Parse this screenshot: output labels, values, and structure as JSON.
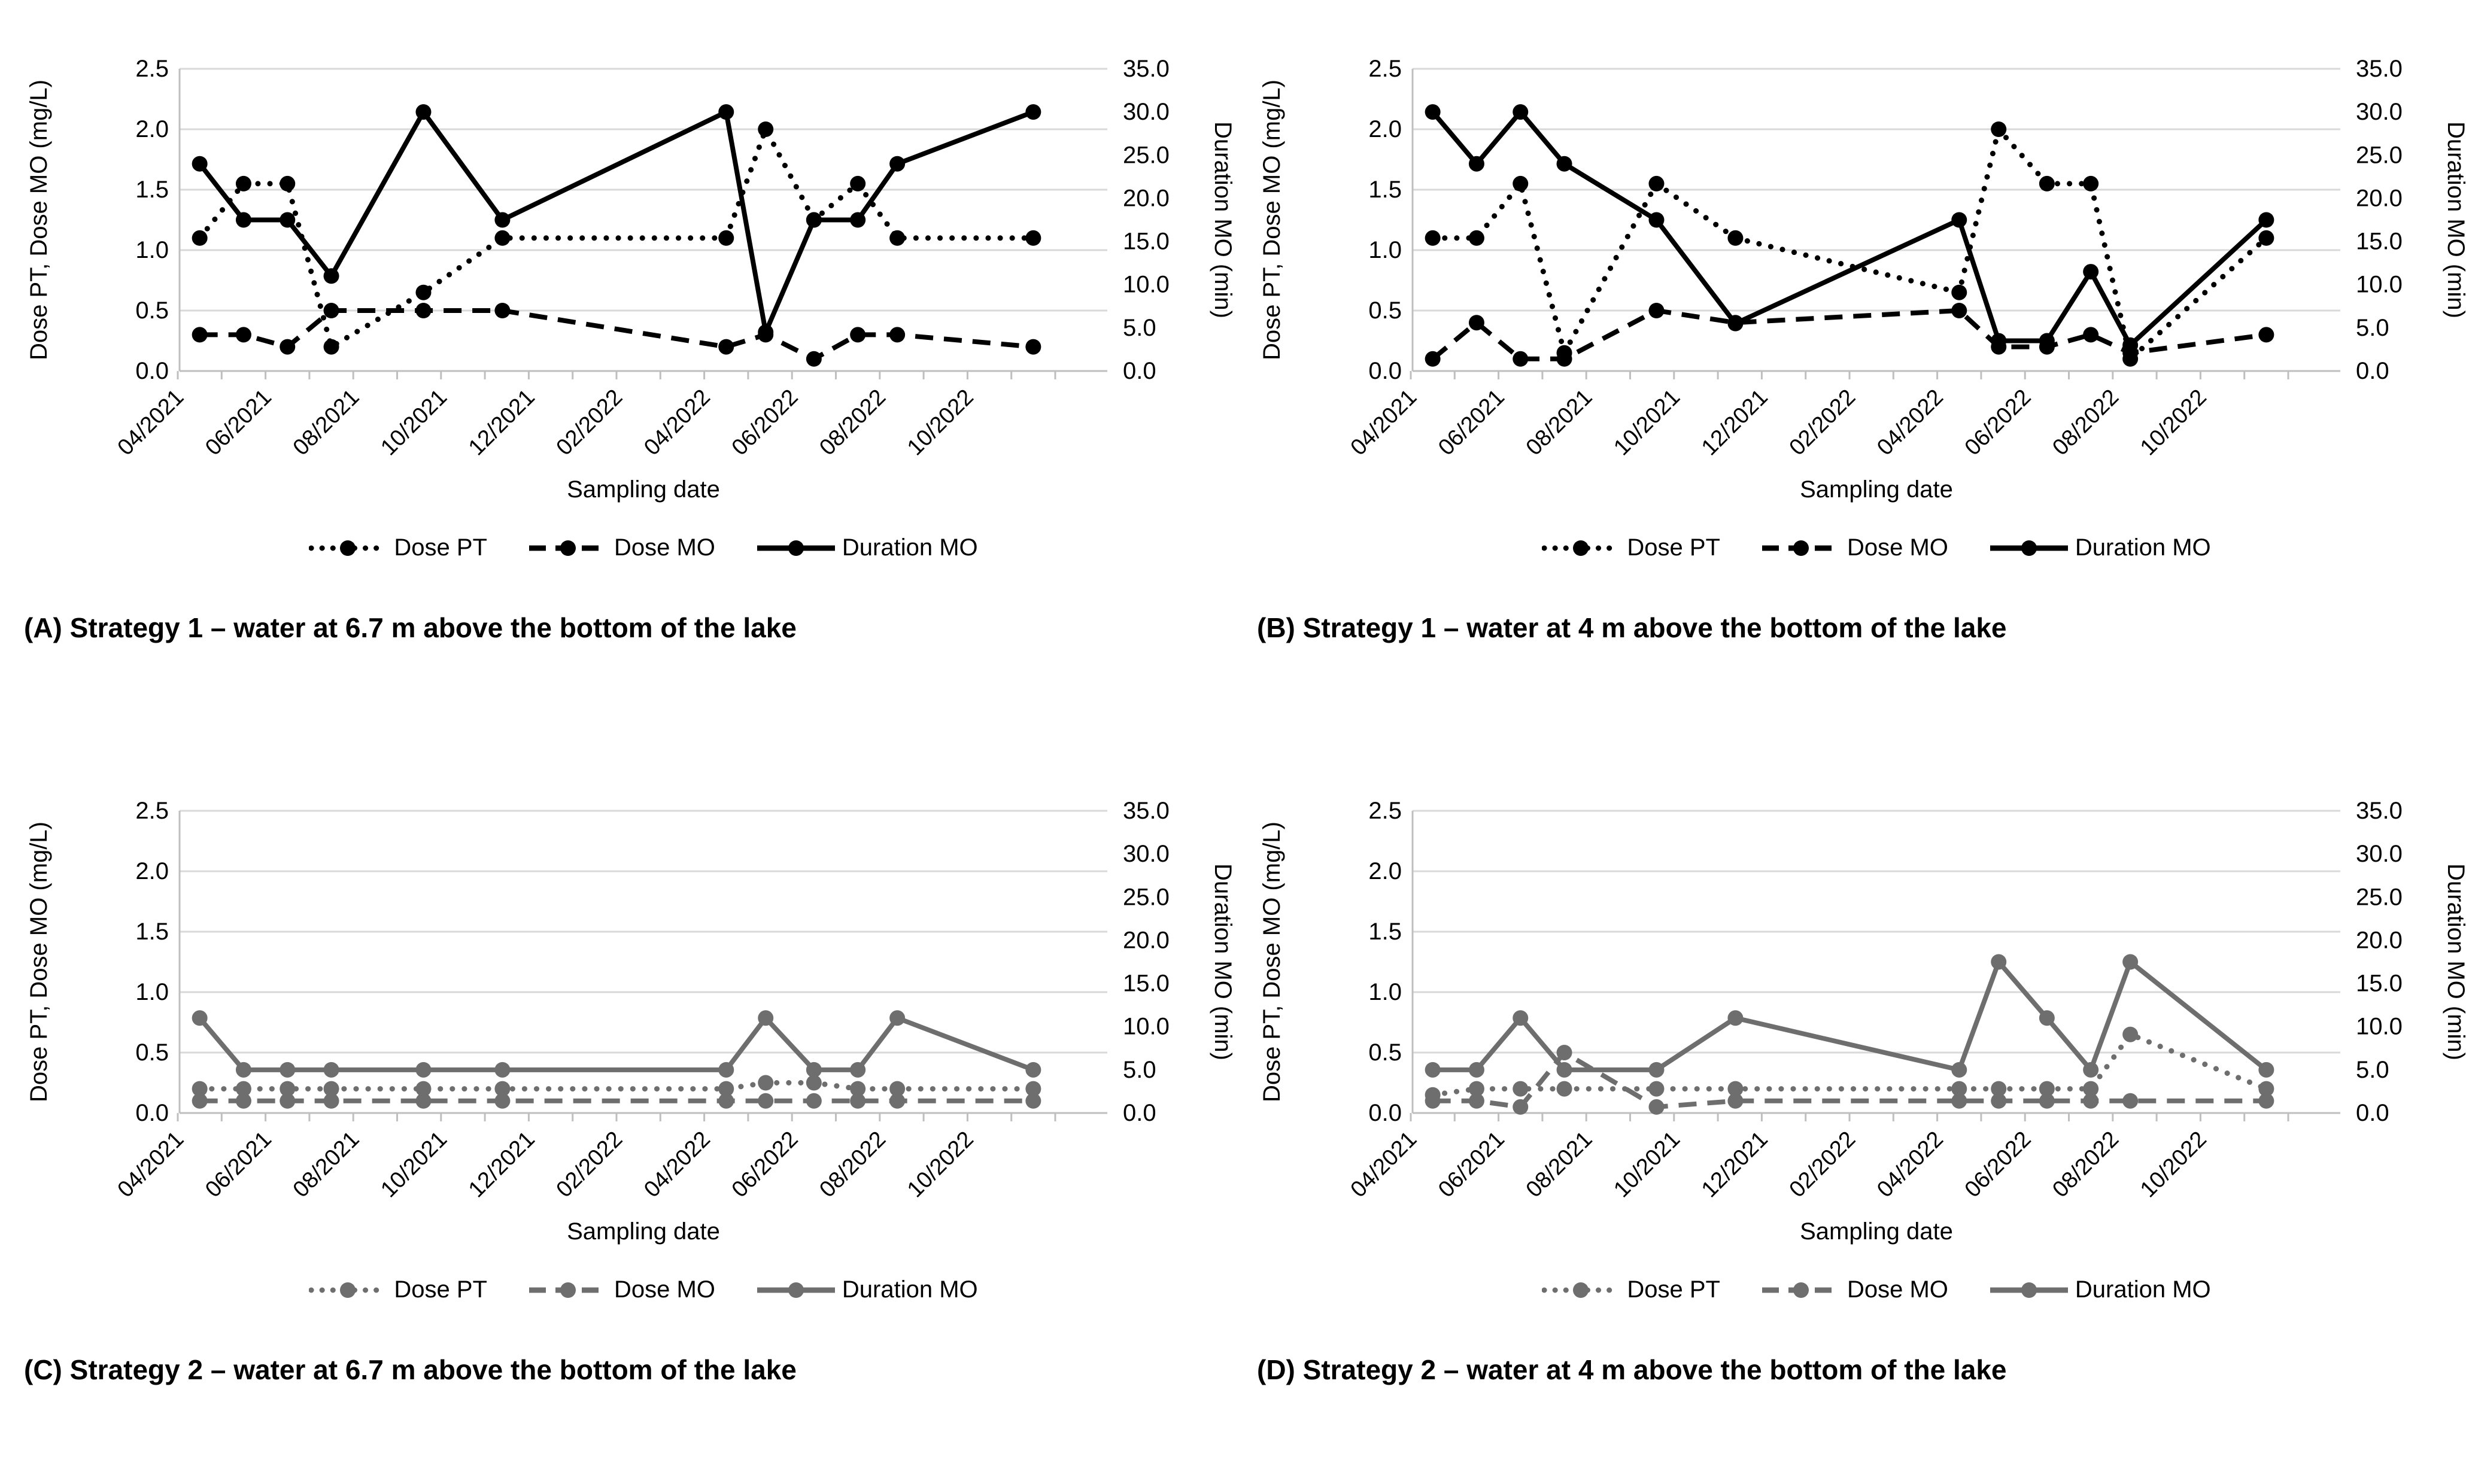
{
  "axes": {
    "x_label": "Sampling date",
    "y_left_label": "Dose PT, Dose MO (mg/L)",
    "y_right_label": "Duration MO (min)",
    "y_left_ticks": [
      "0.0",
      "0.5",
      "1.0",
      "1.5",
      "2.0",
      "2.5"
    ],
    "y_right_ticks": [
      "0.0",
      "5.0",
      "10.0",
      "15.0",
      "20.0",
      "25.0",
      "30.0",
      "35.0"
    ],
    "x_tick_labels": [
      "04/2021",
      "06/2021",
      "08/2021",
      "10/2021",
      "12/2021",
      "02/2022",
      "04/2022",
      "06/2022",
      "08/2022",
      "10/2022"
    ],
    "y_left_range": [
      0,
      2.5
    ],
    "y_right_range": [
      0,
      35
    ],
    "x_month_range": [
      0,
      20
    ],
    "grid": "horizontal gridlines at 0.5 mg/L steps"
  },
  "legend": {
    "items": [
      {
        "label": "Dose PT",
        "style": "dotted"
      },
      {
        "label": "Dose MO",
        "style": "dashed"
      },
      {
        "label": "Duration MO",
        "style": "solid"
      }
    ]
  },
  "colors": {
    "strategy1": "#000000",
    "strategy2": "#6e6e6e",
    "gridline": "#d9d9d9",
    "axis_line": "#bfbfbf",
    "text": "#000000"
  },
  "sampling_month_offsets": [
    0.5,
    1.5,
    2.5,
    3.5,
    5.6,
    7.4,
    12.5,
    13.4,
    14.5,
    15.5,
    16.4,
    19.5
  ],
  "chart_data": [
    {
      "id": "A",
      "type": "line",
      "caption": "(A) Strategy 1 – water at 6.7 m above the bottom of the lake",
      "color_key": "strategy1",
      "x_months": [
        0.5,
        1.5,
        2.5,
        3.5,
        5.6,
        7.4,
        12.5,
        13.4,
        14.5,
        15.5,
        16.4,
        19.5
      ],
      "series": [
        {
          "name": "Dose PT",
          "axis": "left",
          "style": "dotted",
          "values": [
            1.1,
            1.55,
            1.55,
            0.2,
            0.65,
            1.1,
            1.1,
            2.0,
            1.25,
            1.55,
            1.1,
            1.1
          ]
        },
        {
          "name": "Dose MO",
          "axis": "left",
          "style": "dashed",
          "values": [
            0.3,
            0.3,
            0.2,
            0.5,
            0.5,
            0.5,
            0.2,
            0.3,
            0.1,
            0.3,
            0.3,
            0.2
          ]
        },
        {
          "name": "Duration MO",
          "axis": "right",
          "style": "solid",
          "values": [
            24,
            17.5,
            17.5,
            11,
            30,
            17.5,
            30,
            4.5,
            17.5,
            17.5,
            24,
            30
          ]
        }
      ]
    },
    {
      "id": "B",
      "type": "line",
      "caption": "(B) Strategy 1 – water at 4 m above the bottom of the lake",
      "color_key": "strategy1",
      "x_months": [
        0.5,
        1.5,
        2.5,
        3.5,
        5.6,
        7.4,
        12.5,
        13.4,
        14.5,
        15.5,
        16.4,
        19.5
      ],
      "series": [
        {
          "name": "Dose PT",
          "axis": "left",
          "style": "dotted",
          "values": [
            1.1,
            1.1,
            1.55,
            0.15,
            1.55,
            1.1,
            0.65,
            2.0,
            1.55,
            1.55,
            0.1,
            1.1
          ]
        },
        {
          "name": "Dose MO",
          "axis": "left",
          "style": "dashed",
          "values": [
            0.1,
            0.4,
            0.1,
            0.1,
            0.5,
            0.4,
            0.5,
            0.2,
            0.2,
            0.3,
            0.15,
            0.3
          ]
        },
        {
          "name": "Duration MO",
          "axis": "right",
          "style": "solid",
          "values": [
            30,
            24,
            30,
            24,
            17.5,
            5.5,
            17.5,
            3.5,
            3.5,
            11.5,
            3,
            17.5
          ]
        }
      ]
    },
    {
      "id": "C",
      "type": "line",
      "caption": "(C) Strategy 2 – water at 6.7 m above the bottom of the lake",
      "color_key": "strategy2",
      "x_months": [
        0.5,
        1.5,
        2.5,
        3.5,
        5.6,
        7.4,
        12.5,
        13.4,
        14.5,
        15.5,
        16.4,
        19.5
      ],
      "series": [
        {
          "name": "Dose PT",
          "axis": "left",
          "style": "dotted",
          "values": [
            0.2,
            0.2,
            0.2,
            0.2,
            0.2,
            0.2,
            0.2,
            0.25,
            0.25,
            0.2,
            0.2,
            0.2
          ]
        },
        {
          "name": "Dose MO",
          "axis": "left",
          "style": "dashed",
          "values": [
            0.1,
            0.1,
            0.1,
            0.1,
            0.1,
            0.1,
            0.1,
            0.1,
            0.1,
            0.1,
            0.1,
            0.1
          ]
        },
        {
          "name": "Duration MO",
          "axis": "right",
          "style": "solid",
          "values": [
            11,
            5,
            5,
            5,
            5,
            5,
            5,
            11,
            5,
            5,
            11,
            5
          ]
        }
      ]
    },
    {
      "id": "D",
      "type": "line",
      "caption": "(D) Strategy 2 – water at 4 m above the bottom of the lake",
      "color_key": "strategy2",
      "x_months": [
        0.5,
        1.5,
        2.5,
        3.5,
        5.6,
        7.4,
        12.5,
        13.4,
        14.5,
        15.5,
        16.4,
        19.5
      ],
      "series": [
        {
          "name": "Dose PT",
          "axis": "left",
          "style": "dotted",
          "values": [
            0.15,
            0.2,
            0.2,
            0.2,
            0.2,
            0.2,
            0.2,
            0.2,
            0.2,
            0.2,
            0.65,
            0.2
          ]
        },
        {
          "name": "Dose MO",
          "axis": "left",
          "style": "dashed",
          "values": [
            0.1,
            0.1,
            0.05,
            0.5,
            0.05,
            0.1,
            0.1,
            0.1,
            0.1,
            0.1,
            0.1,
            0.1
          ]
        },
        {
          "name": "Duration MO",
          "axis": "right",
          "style": "solid",
          "values": [
            5,
            5,
            11,
            5,
            5,
            11,
            5,
            17.5,
            11,
            5,
            17.5,
            5
          ]
        }
      ]
    }
  ]
}
